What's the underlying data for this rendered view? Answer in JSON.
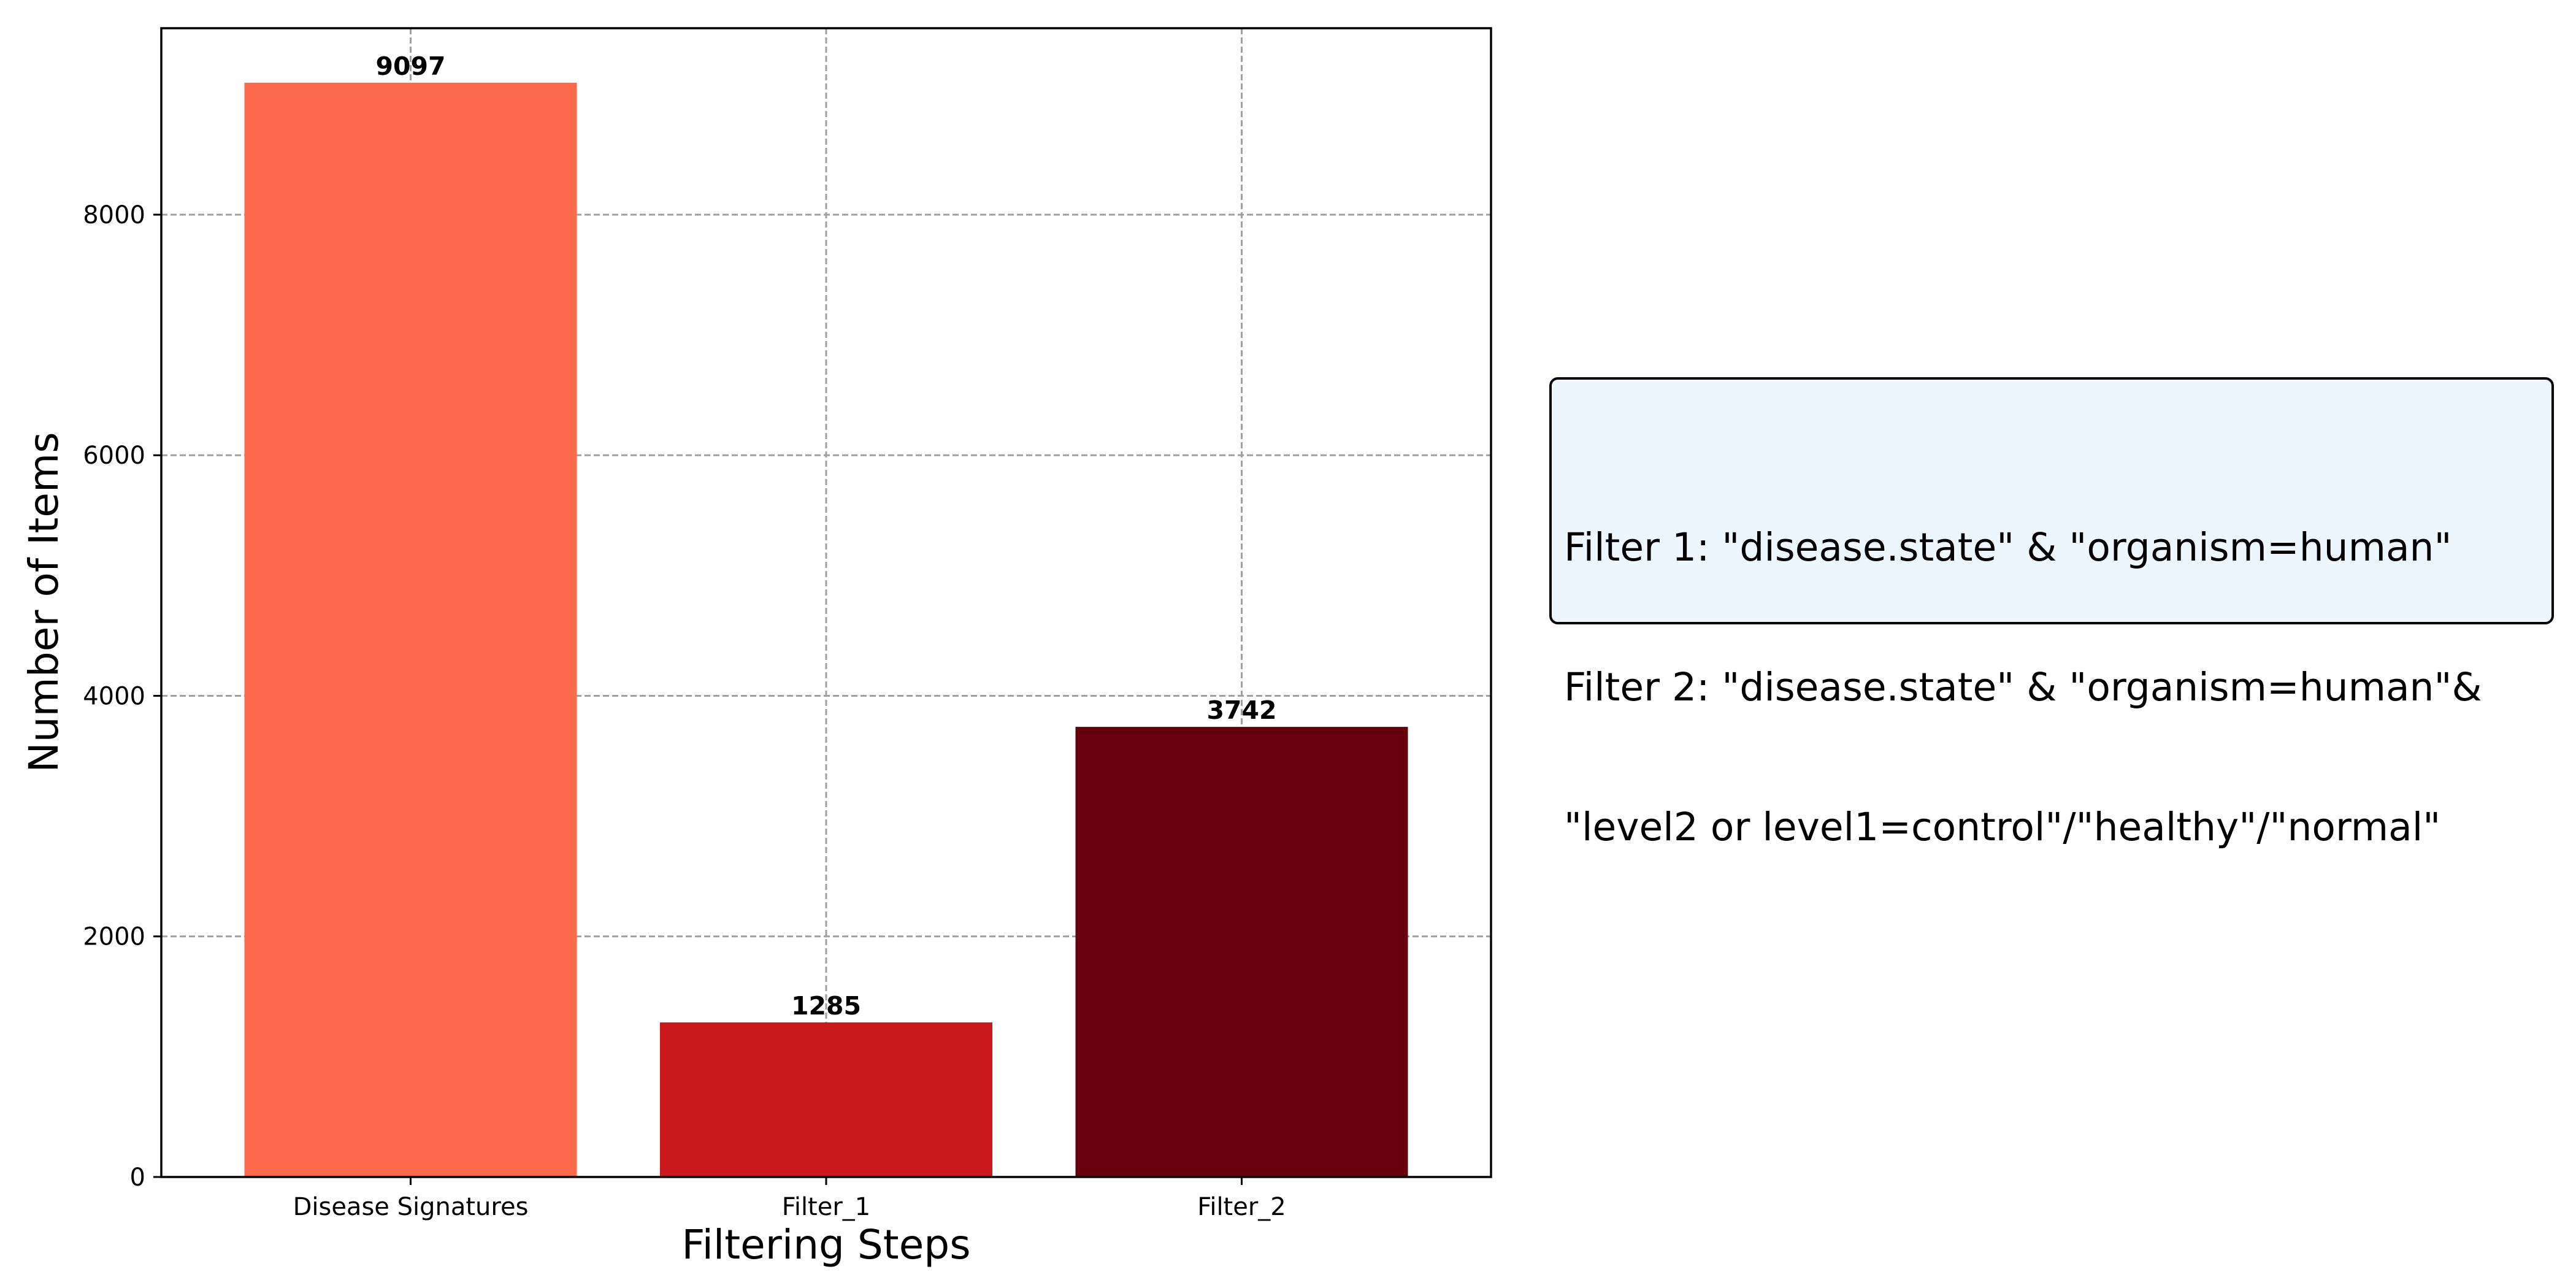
{
  "chart_data": {
    "type": "bar",
    "categories": [
      "Disease Signatures",
      "Filter_1",
      "Filter_2"
    ],
    "values": [
      9097,
      1285,
      3742
    ],
    "colors": [
      "#fc6a4b",
      "#cb181d",
      "#67000d"
    ],
    "value_labels": [
      "9097",
      "1285",
      "3742"
    ],
    "title": "",
    "xlabel": "Filtering Steps",
    "ylabel": "Number of Items",
    "ylim": [
      0,
      9550
    ],
    "yticks": [
      0,
      2000,
      4000,
      6000,
      8000
    ],
    "ytick_labels": [
      "0",
      "2000",
      "4000",
      "6000",
      "8000"
    ],
    "grid": true,
    "grid_style": "dashed"
  },
  "annotation": {
    "lines": [
      "Filter 1: \"disease.state\" & \"organism=human\"",
      "Filter 2: \"disease.state\" & \"organism=human\"&",
      "\"level2 or level1=control\"/\"healthy\"/\"normal\""
    ]
  }
}
